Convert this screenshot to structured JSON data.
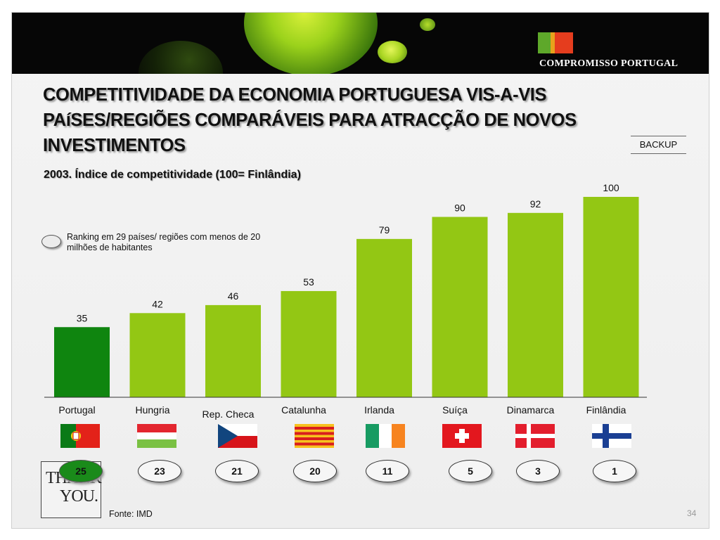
{
  "header": {
    "brand": "COMPROMISSO PORTUGAL",
    "brand_flag_colors": [
      "#5ea82a",
      "#e53d1e",
      "#e8a21c"
    ]
  },
  "title": "COMPETITIVIDADE DA ECONOMIA PORTUGUESA VIS-A-VIS PAíSES/REGIÕES COMPARÁVEIS PARA ATRACÇÃO DE NOVOS INVESTIMENTOS",
  "backup_label": "BACKUP",
  "legend": {
    "text": "Ranking em 29 países/ regiões com menos de 20 milhões de habitantes",
    "icon": "oval-marker"
  },
  "chart_data": {
    "type": "bar",
    "title": "2003. Índice de competitividade (100= Finlândia)",
    "categories": [
      "Portugal",
      "Hungria",
      "Rep. Checa",
      "Catalunha",
      "Irlanda",
      "Suíça",
      "Dinamarca",
      "Finlândia"
    ],
    "values": [
      35,
      42,
      46,
      53,
      79,
      90,
      92,
      100
    ],
    "ylim": [
      0,
      100
    ],
    "data_labels": true,
    "grid": false,
    "colors": {
      "highlight": "#0f850f",
      "default": "#93c714",
      "axis": "#333333"
    },
    "highlight_index": 0,
    "rankings": [
      25,
      23,
      21,
      20,
      11,
      5,
      3,
      1
    ]
  },
  "flags": [
    "portugal-flag",
    "hungary-flag",
    "czech-flag",
    "catalonia-flag",
    "ireland-flag",
    "switzerland-flag",
    "denmark-flag",
    "finland-flag"
  ],
  "thank_you": {
    "line1": "THANK",
    "line2": "YOU."
  },
  "source": "Fonte: IMD",
  "page_number": "34"
}
